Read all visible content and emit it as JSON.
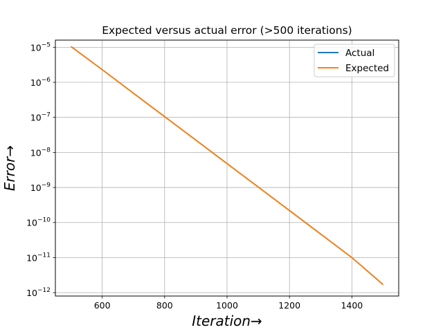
{
  "chart_data": {
    "type": "line",
    "title": "Expected versus actual error (>500 iterations)",
    "xlabel": "Iteration→",
    "ylabel": "Error→",
    "y_scale": "log",
    "xlim": [
      450,
      1550
    ],
    "ylim": [
      8e-13,
      1.6e-05
    ],
    "x_ticks": [
      600,
      800,
      1000,
      1200,
      1400
    ],
    "y_tick_exponents": [
      -5,
      -6,
      -7,
      -8,
      -9,
      -10,
      -11,
      -12
    ],
    "y_tick_base": "10",
    "grid": true,
    "legend_position": "upper-right",
    "series": [
      {
        "name": "Actual",
        "color": "#1f77b4",
        "x": [
          500,
          600,
          700,
          800,
          900,
          1000,
          1100,
          1200,
          1300,
          1400,
          1500
        ],
        "y": [
          1.05e-05,
          2.3e-06,
          4.9e-07,
          1.05e-07,
          2.25e-08,
          4.8e-09,
          1.03e-09,
          2.2e-10,
          4.7e-11,
          1e-11,
          1.7e-12
        ]
      },
      {
        "name": "Expected",
        "color": "#ff7f0e",
        "x": [
          500,
          600,
          700,
          800,
          900,
          1000,
          1100,
          1200,
          1300,
          1400,
          1500
        ],
        "y": [
          1.05e-05,
          2.3e-06,
          4.9e-07,
          1.05e-07,
          2.25e-08,
          4.8e-09,
          1.03e-09,
          2.2e-10,
          4.7e-11,
          1e-11,
          1.7e-12
        ]
      }
    ]
  }
}
